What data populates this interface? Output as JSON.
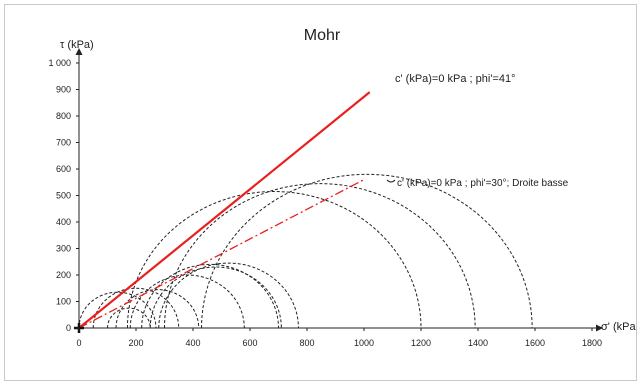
{
  "chart_data": {
    "type": "line",
    "title": "Mohr",
    "xlabel": "σ' (kPa",
    "ylabel": "τ (kPa)",
    "xlim": [
      0,
      1800
    ],
    "ylim": [
      0,
      1000
    ],
    "x_ticks": [
      "0",
      "200",
      "400",
      "600",
      "800",
      "1000",
      "1200",
      "1400",
      "1600",
      "1800"
    ],
    "y_ticks": [
      "0",
      "100",
      "200",
      "300",
      "400",
      "500",
      "600",
      "700",
      "800",
      "900",
      "1 000"
    ],
    "x_tick_values": [
      0,
      200,
      400,
      600,
      800,
      1000,
      1200,
      1400,
      1600,
      1800
    ],
    "y_tick_values": [
      0,
      100,
      200,
      300,
      400,
      500,
      600,
      700,
      800,
      900,
      1000
    ],
    "series": [
      {
        "type": "line",
        "style": "solid",
        "color": "#e8201e",
        "x": [
          0,
          1020
        ],
        "y": [
          0,
          890
        ]
      },
      {
        "type": "line",
        "style": "dash-dot",
        "color": "#e8201e",
        "x": [
          0,
          1000
        ],
        "y": [
          0,
          560
        ]
      }
    ],
    "circles": [
      {
        "s1": 0,
        "s3": 270
      },
      {
        "s1": 50,
        "s3": 350
      },
      {
        "s1": 100,
        "s3": 250
      },
      {
        "s1": 130,
        "s3": 420
      },
      {
        "s1": 180,
        "s3": 580
      },
      {
        "s1": 220,
        "s3": 700
      },
      {
        "s1": 250,
        "s3": 710
      },
      {
        "s1": 280,
        "s3": 770
      },
      {
        "s1": 170,
        "s3": 1200
      },
      {
        "s1": 300,
        "s3": 1390
      },
      {
        "s1": 430,
        "s3": 1590
      }
    ],
    "annotations": [
      "c' (kPa)=0 kPa ; phi'=41°",
      "c' (kPa)=0 kPa ; phi'=30°; Droite basse"
    ],
    "grid": false,
    "legend": "none"
  }
}
